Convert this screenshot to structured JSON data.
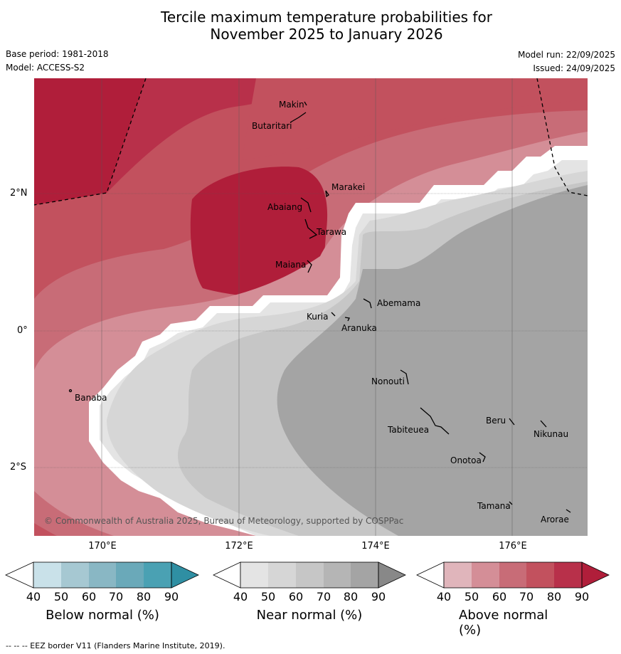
{
  "title": {
    "line1": "Tercile maximum temperature probabilities for",
    "line2": "November 2025 to January 2026"
  },
  "meta": {
    "base_period": "Base period: 1981-2018",
    "model": "Model: ACCESS-S2",
    "model_run": "Model run: 22/09/2025",
    "issued": "Issued: 24/09/2025"
  },
  "axes": {
    "lon_ticks": [
      "170°E",
      "172°E",
      "174°E",
      "176°E"
    ],
    "lat_ticks": [
      "2°N",
      "0°",
      "2°S"
    ]
  },
  "copyright": "© Commonwealth of Australia 2025, Bureau of Meteorology, supported by COSPPac",
  "places": [
    {
      "name": "Makin"
    },
    {
      "name": "Butaritari"
    },
    {
      "name": "Marakei"
    },
    {
      "name": "Abaiang"
    },
    {
      "name": "Tarawa"
    },
    {
      "name": "Maiana"
    },
    {
      "name": "Abemama"
    },
    {
      "name": "Kuria"
    },
    {
      "name": "Aranuka"
    },
    {
      "name": "Banaba"
    },
    {
      "name": "Nonouti"
    },
    {
      "name": "Beru"
    },
    {
      "name": "Tabiteuea"
    },
    {
      "name": "Nikunau"
    },
    {
      "name": "Onotoa"
    },
    {
      "name": "Tamana"
    },
    {
      "name": "Arorae"
    }
  ],
  "colorbars": [
    {
      "label": "Below normal (%)",
      "ticks": [
        "40",
        "50",
        "60",
        "70",
        "80",
        "90"
      ],
      "colors": [
        "#ffffff",
        "#c9e1e9",
        "#a6c8d2",
        "#89b7c4",
        "#6aa9b9",
        "#4aa1b3",
        "#2f8fa3"
      ]
    },
    {
      "label": "Near normal (%)",
      "ticks": [
        "40",
        "50",
        "60",
        "70",
        "80",
        "90"
      ],
      "colors": [
        "#ffffff",
        "#e4e4e4",
        "#d6d6d6",
        "#c6c6c6",
        "#b5b5b5",
        "#a4a4a4",
        "#888888"
      ]
    },
    {
      "label": "Above normal (%)",
      "ticks": [
        "40",
        "50",
        "60",
        "70",
        "80",
        "90"
      ],
      "colors": [
        "#ffffff",
        "#e0b5bb",
        "#d48e97",
        "#c86c77",
        "#c2515e",
        "#b8304a",
        "#b01e3a"
      ]
    }
  ],
  "footnote": "--  --  -- EEZ border V11 (Flanders Marine Institute, 2019)."
}
